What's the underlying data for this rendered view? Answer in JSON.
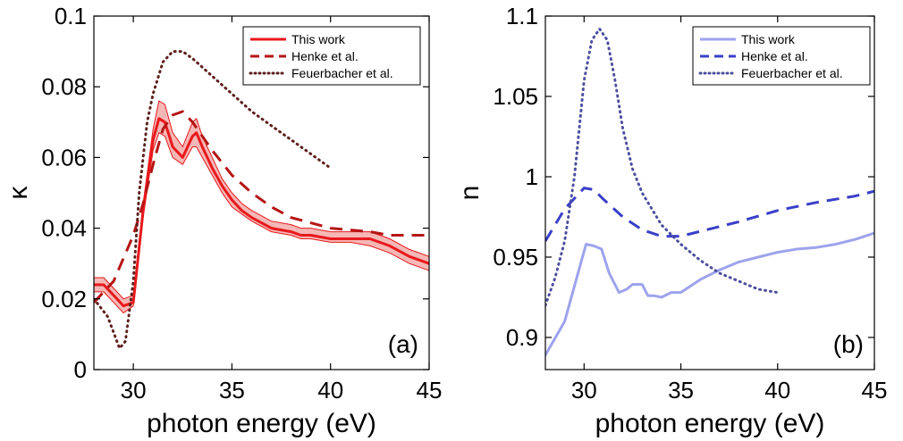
{
  "chart_data": [
    {
      "type": "line",
      "panel_label": "(a)",
      "xlabel": "photon energy (eV)",
      "ylabel": "κ",
      "xlim": [
        28,
        45
      ],
      "ylim": [
        0,
        0.1
      ],
      "xticks": [
        30,
        35,
        40,
        45
      ],
      "yticks": [
        0,
        0.02,
        0.04,
        0.06,
        0.08,
        0.1
      ],
      "ytick_labels": [
        "0",
        "0.02",
        "0.04",
        "0.06",
        "0.08",
        "0.1"
      ],
      "legend_position": "top-right",
      "grid": false,
      "series": [
        {
          "name": "This work",
          "style": "solid",
          "color": "#e8191c",
          "band_color": "#f4b0ae",
          "x": [
            28,
            28.5,
            29,
            29.5,
            30,
            30.5,
            31,
            31.3,
            31.6,
            32,
            32.5,
            33,
            33.2,
            33.5,
            34,
            34.5,
            35,
            35.5,
            36,
            37,
            38,
            38.5,
            39,
            40,
            41,
            42,
            43,
            44,
            45
          ],
          "y": [
            0.024,
            0.024,
            0.021,
            0.018,
            0.019,
            0.045,
            0.065,
            0.071,
            0.07,
            0.063,
            0.06,
            0.066,
            0.067,
            0.063,
            0.057,
            0.052,
            0.048,
            0.045,
            0.043,
            0.04,
            0.039,
            0.038,
            0.038,
            0.037,
            0.037,
            0.037,
            0.035,
            0.032,
            0.03
          ],
          "y_lower": [
            0.022,
            0.022,
            0.019,
            0.016,
            0.018,
            0.043,
            0.062,
            0.067,
            0.066,
            0.06,
            0.058,
            0.063,
            0.063,
            0.06,
            0.055,
            0.05,
            0.046,
            0.044,
            0.042,
            0.039,
            0.038,
            0.037,
            0.037,
            0.036,
            0.036,
            0.035,
            0.033,
            0.03,
            0.028
          ],
          "y_upper": [
            0.026,
            0.026,
            0.023,
            0.02,
            0.021,
            0.047,
            0.068,
            0.076,
            0.075,
            0.067,
            0.063,
            0.07,
            0.071,
            0.066,
            0.06,
            0.054,
            0.05,
            0.047,
            0.045,
            0.042,
            0.041,
            0.04,
            0.04,
            0.039,
            0.039,
            0.039,
            0.037,
            0.034,
            0.032
          ]
        },
        {
          "name": "Henke et al.",
          "style": "dashed",
          "color": "#b51515",
          "x": [
            28,
            29,
            30,
            30.5,
            31,
            31.5,
            32,
            32.5,
            33,
            34,
            35,
            36,
            37,
            38,
            40,
            42,
            43,
            45
          ],
          "y": [
            0.019,
            0.025,
            0.038,
            0.047,
            0.058,
            0.068,
            0.072,
            0.073,
            0.07,
            0.062,
            0.055,
            0.05,
            0.046,
            0.043,
            0.04,
            0.039,
            0.038,
            0.038
          ]
        },
        {
          "name": "Feuerbacher et al.",
          "style": "dotted",
          "color": "#5c1f1b",
          "x": [
            28,
            28.7,
            29.3,
            29.6,
            30,
            30.3,
            30.7,
            31,
            31.5,
            32,
            32.5,
            33,
            34,
            35,
            36,
            37,
            38,
            39,
            40
          ],
          "y": [
            0.02,
            0.015,
            0.006,
            0.008,
            0.025,
            0.05,
            0.07,
            0.078,
            0.087,
            0.09,
            0.09,
            0.088,
            0.083,
            0.078,
            0.073,
            0.069,
            0.065,
            0.061,
            0.057
          ]
        }
      ]
    },
    {
      "type": "line",
      "panel_label": "(b)",
      "xlabel": "photon energy (eV)",
      "ylabel": "n",
      "xlim": [
        28,
        45
      ],
      "ylim": [
        0.88,
        1.1
      ],
      "xticks": [
        30,
        35,
        40,
        45
      ],
      "yticks": [
        0.9,
        0.95,
        1,
        1.05,
        1.1
      ],
      "ytick_labels": [
        "0.9",
        "0.95",
        "1",
        "1.05",
        "1.1"
      ],
      "legend_position": "top-right",
      "grid": false,
      "series": [
        {
          "name": "This work",
          "style": "solid",
          "color": "#9da3ec",
          "x": [
            28,
            29,
            29.8,
            30.1,
            30.5,
            30.9,
            31.3,
            31.8,
            32.2,
            32.5,
            33,
            33.3,
            33.6,
            34,
            34.5,
            35,
            36,
            37,
            38,
            39,
            40,
            41,
            42,
            43,
            44,
            45
          ],
          "y": [
            0.889,
            0.91,
            0.945,
            0.958,
            0.957,
            0.955,
            0.94,
            0.928,
            0.93,
            0.933,
            0.933,
            0.926,
            0.926,
            0.925,
            0.928,
            0.928,
            0.936,
            0.942,
            0.947,
            0.95,
            0.953,
            0.955,
            0.956,
            0.958,
            0.961,
            0.965
          ]
        },
        {
          "name": "Henke et al.",
          "style": "dashed",
          "color": "#3a3fc8",
          "x": [
            28,
            29,
            30,
            30.5,
            31,
            32,
            33,
            34,
            35,
            36,
            38,
            40,
            42,
            44,
            45
          ],
          "y": [
            0.96,
            0.98,
            0.993,
            0.992,
            0.986,
            0.975,
            0.967,
            0.963,
            0.963,
            0.966,
            0.972,
            0.979,
            0.984,
            0.988,
            0.991
          ]
        },
        {
          "name": "Feuerbacher et al.",
          "style": "dotted",
          "color": "#4b4e9e",
          "x": [
            28,
            28.5,
            29,
            29.5,
            30,
            30.4,
            30.8,
            31.2,
            31.6,
            32,
            32.5,
            33,
            34,
            35,
            36,
            37,
            38,
            39,
            40
          ],
          "y": [
            0.92,
            0.937,
            0.96,
            1.0,
            1.06,
            1.085,
            1.092,
            1.085,
            1.06,
            1.03,
            1.005,
            0.99,
            0.97,
            0.958,
            0.948,
            0.94,
            0.935,
            0.93,
            0.928
          ]
        }
      ]
    }
  ]
}
